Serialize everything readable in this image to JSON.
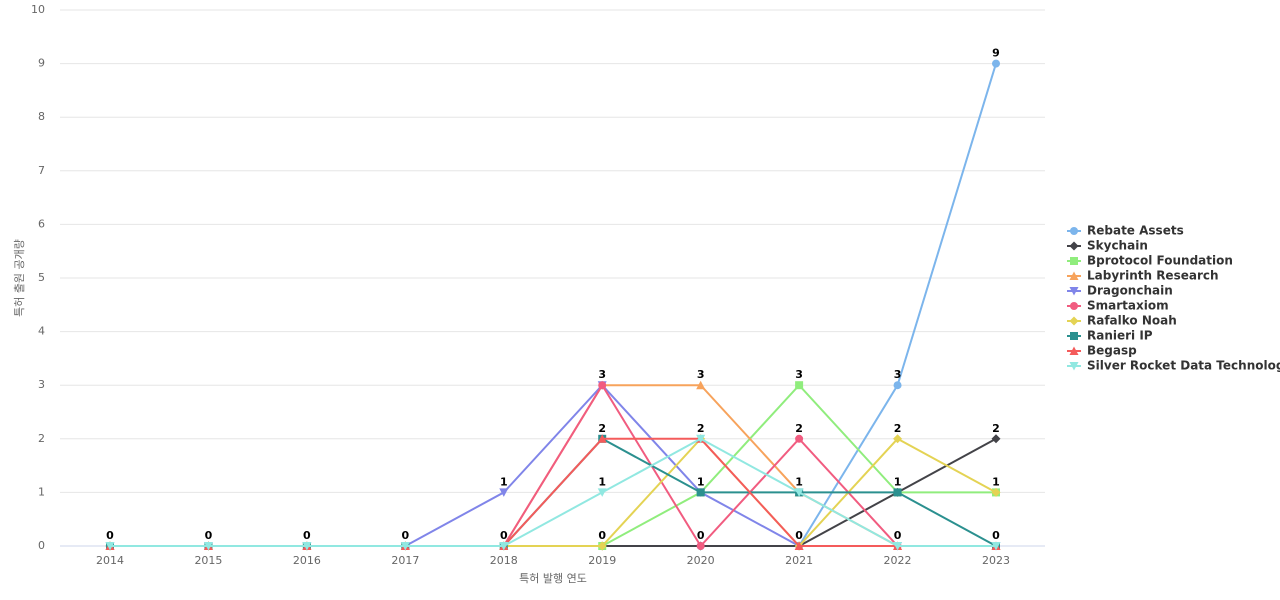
{
  "chart_data": {
    "type": "line",
    "x_label": "특허 발행 연도",
    "y_label": "특허 출원 공개량",
    "categories": [
      "2014",
      "2015",
      "2016",
      "2017",
      "2018",
      "2019",
      "2020",
      "2021",
      "2022",
      "2023"
    ],
    "ylim": [
      0,
      10
    ],
    "yticks": [
      0,
      1,
      2,
      3,
      4,
      5,
      6,
      7,
      8,
      9,
      10
    ],
    "grid": true,
    "legend": "right",
    "series": [
      {
        "name": "Rebate Assets",
        "color": "#7cb5ec",
        "marker": "circle",
        "values": [
          0,
          0,
          0,
          0,
          0,
          0,
          0,
          0,
          3,
          9
        ]
      },
      {
        "name": "Skychain",
        "color": "#434348",
        "marker": "diamond",
        "values": [
          0,
          0,
          0,
          0,
          0,
          0,
          0,
          0,
          1,
          2
        ]
      },
      {
        "name": "Bprotocol Foundation",
        "color": "#90ed7d",
        "marker": "square",
        "values": [
          0,
          0,
          0,
          0,
          0,
          0,
          1,
          3,
          1,
          1
        ]
      },
      {
        "name": "Labyrinth Research",
        "color": "#f7a35c",
        "marker": "triangle",
        "values": [
          0,
          0,
          0,
          0,
          0,
          3,
          3,
          1,
          0,
          0
        ]
      },
      {
        "name": "Dragonchain",
        "color": "#8085e9",
        "marker": "triangle-down",
        "values": [
          0,
          0,
          0,
          0,
          1,
          3,
          1,
          0,
          0,
          0
        ]
      },
      {
        "name": "Smartaxiom",
        "color": "#f15c80",
        "marker": "circle",
        "values": [
          0,
          0,
          0,
          0,
          0,
          3,
          0,
          2,
          0,
          0
        ]
      },
      {
        "name": "Rafalko Noah",
        "color": "#e4d354",
        "marker": "diamond",
        "values": [
          0,
          0,
          0,
          0,
          0,
          0,
          2,
          0,
          2,
          1
        ]
      },
      {
        "name": "Ranieri IP",
        "color": "#2b908f",
        "marker": "square",
        "values": [
          0,
          0,
          0,
          0,
          0,
          2,
          1,
          1,
          1,
          0
        ]
      },
      {
        "name": "Begasp",
        "color": "#f45b5b",
        "marker": "triangle",
        "values": [
          0,
          0,
          0,
          0,
          0,
          2,
          2,
          0,
          0,
          0
        ]
      },
      {
        "name": "Silver Rocket Data Technology",
        "color": "#91e8e1",
        "marker": "triangle-down",
        "values": [
          0,
          0,
          0,
          0,
          0,
          1,
          2,
          1,
          0,
          0
        ]
      }
    ]
  }
}
